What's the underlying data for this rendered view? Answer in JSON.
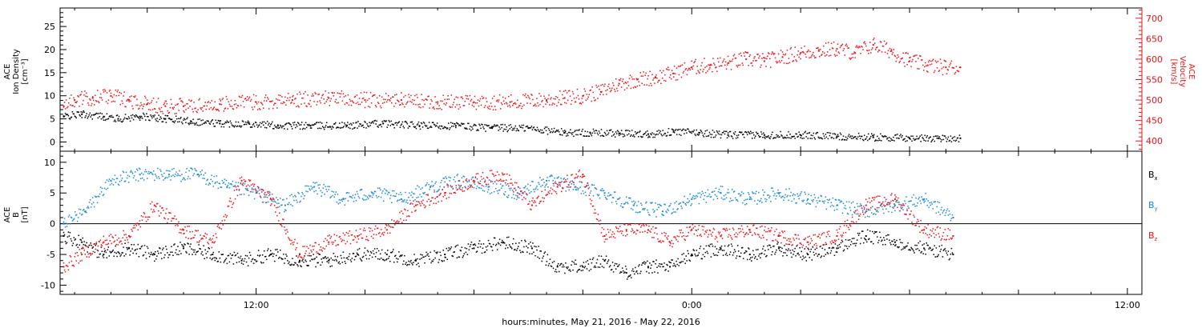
{
  "chart_data": [
    {
      "type": "scatter",
      "xlabel": "hours:minutes, May 21, 2016 - May 22, 2016",
      "x_ticks": [
        {
          "hour": 12,
          "label": "12:00"
        },
        {
          "hour": 24,
          "label": "0:00"
        },
        {
          "hour": 36,
          "label": "12:00"
        }
      ],
      "xlim_hours": [
        6.6,
        36.4
      ],
      "left_axis": {
        "title_lines": [
          "ACE",
          "Ion Density",
          "[cm⁻³]"
        ],
        "ylim": [
          -2,
          29
        ],
        "ticks": [
          0,
          5,
          10,
          15,
          20,
          25
        ],
        "color": "#000000"
      },
      "right_axis": {
        "title_lines": [
          "ACE",
          "Velocity",
          "[km/s]"
        ],
        "ylim": [
          375,
          725
        ],
        "ticks": [
          400,
          450,
          500,
          550,
          600,
          650,
          700
        ],
        "color": "#e8141a"
      },
      "series": [
        {
          "axis": "left",
          "color": "#000000",
          "x": [
            6.7,
            7.2,
            7.8,
            8.2,
            8.8,
            9.5,
            10.2,
            11,
            11.8,
            12.6,
            13.5,
            14.5,
            15.5,
            16.5,
            17.5,
            18.5,
            19.5,
            20.5,
            21.2,
            22,
            22.8,
            23.5,
            24.2,
            25,
            26,
            27,
            28,
            29,
            30,
            30.8,
            31.4
          ],
          "y": [
            5.5,
            6,
            5.5,
            5,
            5.5,
            5,
            4.5,
            4,
            4,
            3.5,
            3.5,
            3.5,
            4,
            3.5,
            3.5,
            3,
            3,
            2,
            2,
            1.8,
            1.7,
            2.2,
            2,
            1.5,
            1.5,
            1.5,
            1.2,
            1,
            0.8,
            0.8,
            0.8
          ]
        },
        {
          "axis": "right",
          "color": "#e8141a",
          "x": [
            6.7,
            7,
            7.5,
            8,
            8.5,
            9,
            9.5,
            10,
            11,
            12,
            13,
            14,
            15,
            16,
            17,
            18,
            19,
            20,
            20.5,
            21,
            21.5,
            22,
            22.5,
            23,
            23.5,
            24,
            24.5,
            25,
            25.5,
            26,
            26.5,
            27,
            27.5,
            28,
            28.5,
            29,
            29.5,
            30,
            30.5,
            31,
            31.4
          ],
          "y": [
            485,
            500,
            505,
            510,
            500,
            490,
            485,
            485,
            490,
            495,
            500,
            505,
            500,
            500,
            495,
            495,
            495,
            500,
            505,
            510,
            520,
            540,
            550,
            555,
            565,
            580,
            585,
            590,
            600,
            595,
            605,
            615,
            620,
            625,
            615,
            635,
            620,
            595,
            585,
            580,
            580
          ]
        }
      ]
    },
    {
      "type": "scatter",
      "xlim_hours": [
        6.6,
        36.4
      ],
      "left_axis": {
        "title_lines": [
          "ACE",
          "B",
          "[nT]"
        ],
        "ylim": [
          -11.5,
          11.8
        ],
        "ticks": [
          -10,
          -5,
          0,
          5,
          10
        ],
        "color": "#000000"
      },
      "zero_line": true,
      "series": [
        {
          "name": "Bx",
          "label_main": "B",
          "label_sub": "x",
          "color": "#000000",
          "x": [
            6.7,
            7.2,
            7.8,
            8.5,
            9.2,
            10,
            10.8,
            11.6,
            12.4,
            13.2,
            14,
            14.8,
            15.6,
            16.4,
            17.2,
            18,
            18.8,
            19.6,
            20.3,
            21,
            21.6,
            22.2,
            22.8,
            23.4,
            24,
            24.8,
            25.6,
            26.4,
            27.2,
            28,
            28.8,
            29.6,
            30.4,
            31.2
          ],
          "y": [
            -2,
            -3,
            -5,
            -4,
            -5,
            -4,
            -5,
            -6,
            -5,
            -6,
            -6,
            -5,
            -5,
            -6,
            -5,
            -4,
            -3,
            -4,
            -7,
            -7,
            -6,
            -8,
            -7,
            -7,
            -5,
            -4,
            -5,
            -4,
            -5,
            -4,
            -2,
            -3,
            -4,
            -5
          ]
        },
        {
          "name": "By",
          "label_main": "B",
          "label_sub": "y",
          "color": "#1a88d8",
          "x": [
            6.7,
            7.3,
            8,
            8.8,
            9.6,
            10.4,
            11.2,
            12,
            12.8,
            13.6,
            14.4,
            15.2,
            16,
            16.8,
            17.6,
            18.4,
            19.2,
            20,
            20.8,
            21.6,
            22.4,
            23.2,
            24,
            24.8,
            25.6,
            26.4,
            27.2,
            28,
            28.8,
            29.6,
            30.4,
            31.2
          ],
          "y": [
            0,
            2,
            7,
            8,
            8,
            8,
            6,
            5,
            3,
            6,
            4,
            5,
            4,
            6,
            7,
            6,
            5,
            7,
            6,
            5,
            3,
            2,
            4,
            5,
            4,
            5,
            4,
            3,
            2,
            3,
            4,
            1
          ]
        },
        {
          "name": "Bz",
          "label_main": "B",
          "label_sub": "z",
          "color": "#e8141a",
          "x": [
            6.7,
            7.2,
            7.8,
            8.5,
            9.2,
            10,
            10.8,
            11.6,
            12.4,
            13.2,
            14,
            14.8,
            15.6,
            16.4,
            17.2,
            18,
            18.8,
            19.6,
            20.3,
            21,
            21.6,
            22.2,
            22.8,
            23.4,
            24,
            24.8,
            25.6,
            26.4,
            27.2,
            28,
            28.8,
            29.6,
            30.4,
            31.2
          ],
          "y": [
            -7,
            -5,
            -3,
            -2,
            3,
            -1,
            -3,
            7,
            4,
            -5,
            -3,
            -2,
            -1,
            3,
            5,
            7,
            8,
            3,
            6,
            8,
            -2,
            -1,
            -1,
            -3,
            -1,
            -2,
            -1,
            -2,
            -3,
            -2,
            3,
            4,
            -1,
            -2
          ]
        }
      ]
    }
  ]
}
